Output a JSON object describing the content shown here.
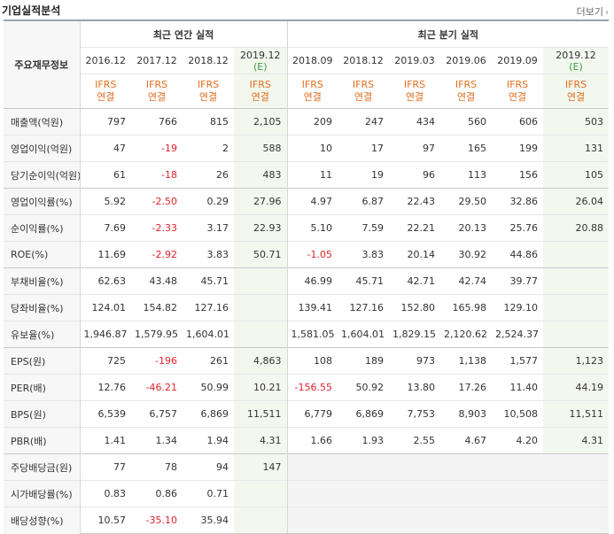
{
  "header": {
    "title": "기업실적분석",
    "more_label": "더보기",
    "more_icon": "chevron-right"
  },
  "table": {
    "label_header": "주요재무정보",
    "groups": {
      "annual": "최근 연간 실적",
      "quarterly": "최근 분기 실적"
    },
    "periods": [
      {
        "year": "2016.12",
        "est": "",
        "ifrs": "IFRS",
        "basis": "연결"
      },
      {
        "year": "2017.12",
        "est": "",
        "ifrs": "IFRS",
        "basis": "연결"
      },
      {
        "year": "2018.12",
        "est": "",
        "ifrs": "IFRS",
        "basis": "연결"
      },
      {
        "year": "2019.12",
        "est": "(E)",
        "ifrs": "IFRS",
        "basis": "연결"
      },
      {
        "year": "2018.09",
        "est": "",
        "ifrs": "IFRS",
        "basis": "연결"
      },
      {
        "year": "2018.12",
        "est": "",
        "ifrs": "IFRS",
        "basis": "연결"
      },
      {
        "year": "2019.03",
        "est": "",
        "ifrs": "IFRS",
        "basis": "연결"
      },
      {
        "year": "2019.06",
        "est": "",
        "ifrs": "IFRS",
        "basis": "연결"
      },
      {
        "year": "2019.09",
        "est": "",
        "ifrs": "IFRS",
        "basis": "연결"
      },
      {
        "year": "2019.12",
        "est": "(E)",
        "ifrs": "IFRS",
        "basis": "연결"
      }
    ],
    "rows": [
      {
        "label": "매출액(억원)",
        "values": [
          "797",
          "766",
          "815",
          "2,105",
          "209",
          "247",
          "434",
          "560",
          "606",
          "503"
        ]
      },
      {
        "label": "영업이익(억원)",
        "values": [
          "47",
          "-19",
          "2",
          "588",
          "10",
          "17",
          "97",
          "165",
          "199",
          "131"
        ]
      },
      {
        "label": "당기순이익(억원)",
        "values": [
          "61",
          "-18",
          "26",
          "483",
          "11",
          "19",
          "96",
          "113",
          "156",
          "105"
        ]
      },
      {
        "label": "영업이익률(%)",
        "values": [
          "5.92",
          "-2.50",
          "0.29",
          "27.96",
          "4.97",
          "6.87",
          "22.43",
          "29.50",
          "32.86",
          "26.04"
        ]
      },
      {
        "label": "순이익률(%)",
        "values": [
          "7.69",
          "-2.33",
          "3.17",
          "22.93",
          "5.10",
          "7.59",
          "22.21",
          "20.13",
          "25.76",
          "20.88"
        ]
      },
      {
        "label": "ROE(%)",
        "values": [
          "11.69",
          "-2.92",
          "3.83",
          "50.71",
          "-1.05",
          "3.83",
          "20.14",
          "30.92",
          "44.86",
          ""
        ]
      },
      {
        "label": "부채비율(%)",
        "values": [
          "62.63",
          "43.48",
          "45.71",
          "",
          "46.99",
          "45.71",
          "42.71",
          "42.74",
          "39.77",
          ""
        ]
      },
      {
        "label": "당좌비율(%)",
        "values": [
          "124.01",
          "154.82",
          "127.16",
          "",
          "139.41",
          "127.16",
          "152.80",
          "165.98",
          "129.10",
          ""
        ]
      },
      {
        "label": "유보율(%)",
        "values": [
          "1,946.87",
          "1,579.95",
          "1,604.01",
          "",
          "1,581.05",
          "1,604.01",
          "1,829.15",
          "2,120.62",
          "2,524.37",
          ""
        ]
      },
      {
        "label": "EPS(원)",
        "values": [
          "725",
          "-196",
          "261",
          "4,863",
          "108",
          "189",
          "973",
          "1,138",
          "1,577",
          "1,123"
        ]
      },
      {
        "label": "PER(배)",
        "values": [
          "12.76",
          "-46.21",
          "50.99",
          "10.21",
          "-156.55",
          "50.92",
          "13.80",
          "17.26",
          "11.40",
          "44.19"
        ]
      },
      {
        "label": "BPS(원)",
        "values": [
          "6,539",
          "6,757",
          "6,869",
          "11,511",
          "6,779",
          "6,869",
          "7,753",
          "8,903",
          "10,508",
          "11,511"
        ]
      },
      {
        "label": "PBR(배)",
        "values": [
          "1.41",
          "1.34",
          "1.94",
          "4.31",
          "1.66",
          "1.93",
          "2.55",
          "4.67",
          "4.20",
          "4.31"
        ]
      },
      {
        "label": "주당배당금(원)",
        "values": [
          "77",
          "78",
          "94",
          "147",
          "",
          "",
          "",
          "",
          "",
          ""
        ]
      },
      {
        "label": "시가배당률(%)",
        "values": [
          "0.83",
          "0.86",
          "0.71",
          "",
          "",
          "",
          "",
          "",
          "",
          ""
        ]
      },
      {
        "label": "배당성향(%)",
        "values": [
          "10.57",
          "-35.10",
          "35.94",
          "",
          "",
          "",
          "",
          "",
          "",
          ""
        ]
      }
    ]
  },
  "colors": {
    "negative": "#e0222b",
    "ifrs": "#e26e1f",
    "estimate_bg": "#f2f8ee",
    "estimate_text": "#3a9a3a"
  }
}
